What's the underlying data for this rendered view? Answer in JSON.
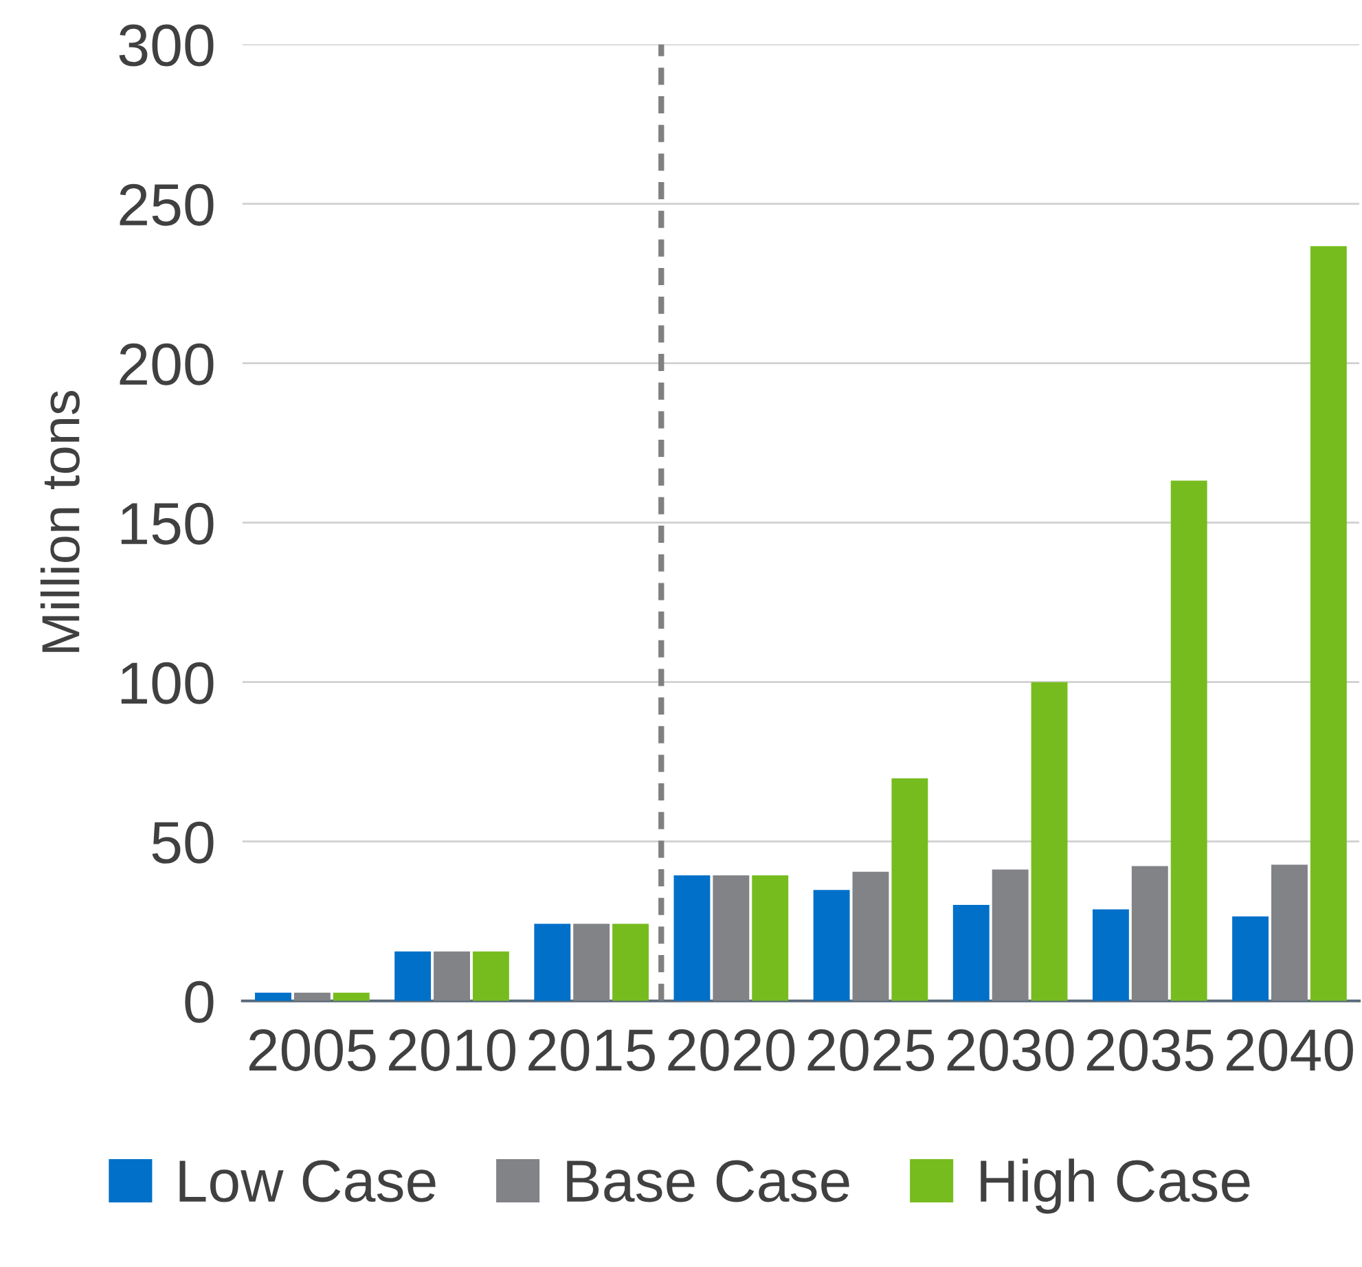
{
  "chart_data": {
    "type": "bar",
    "ylabel": "Million tons",
    "x": [
      2005,
      2010,
      2015,
      2020,
      2025,
      2030,
      2035,
      2040
    ],
    "series": [
      {
        "name": "Low Case",
        "color": "#0070c9",
        "values": [
          2.6,
          15.5,
          24.2,
          39.4,
          34.8,
          30.1,
          28.7,
          26.5
        ]
      },
      {
        "name": "Base Case",
        "color": "#828387",
        "values": [
          2.6,
          15.5,
          24.2,
          39.4,
          40.5,
          41.2,
          42.3,
          42.7
        ]
      },
      {
        "name": "High Case",
        "color": "#77bc1f",
        "values": [
          2.6,
          15.5,
          24.2,
          39.4,
          69.8,
          100,
          163.2,
          236.7
        ]
      }
    ],
    "xlim": [
      2002.5,
      2042.5
    ],
    "xticks": [
      2005,
      2010,
      2015,
      2020,
      2025,
      2030,
      2035,
      2040
    ],
    "ylim": [
      0,
      300
    ],
    "yticks": [
      0,
      50,
      100,
      150,
      200,
      250,
      300
    ],
    "grid": "y",
    "legend": "bottom",
    "ref_lines": [
      {
        "axis": "x",
        "value": 2017.5,
        "color": "#808080",
        "line_style": "dashed"
      }
    ]
  }
}
